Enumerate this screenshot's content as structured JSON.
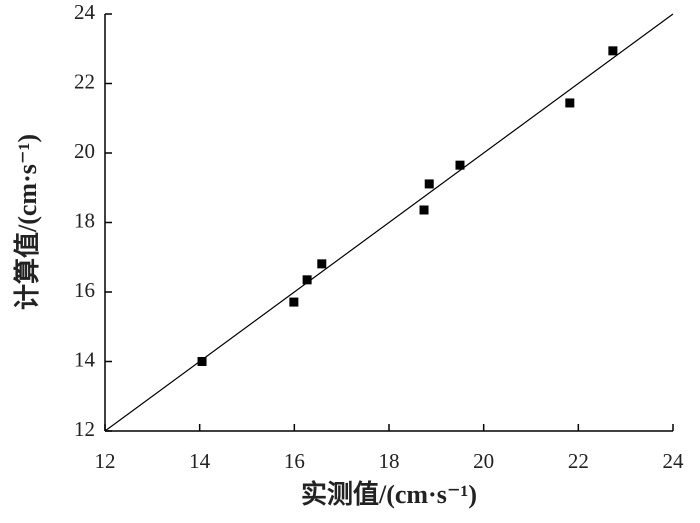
{
  "chart_data": {
    "type": "scatter",
    "x_label": "实测值/(cm·s⁻¹)",
    "y_label": "计算值/(cm·s⁻¹)",
    "x": [
      14.05,
      15.99,
      16.27,
      16.58,
      18.74,
      18.85,
      19.5,
      21.82,
      22.73
    ],
    "values": [
      14.0,
      15.71,
      16.35,
      16.81,
      18.36,
      19.11,
      19.65,
      21.44,
      22.94
    ],
    "color": "#000000",
    "xlim": [
      12,
      24
    ],
    "xticks": [
      12,
      14,
      16,
      18,
      20,
      22,
      24
    ],
    "ylim": [
      12,
      24
    ],
    "yticks": [
      12,
      14,
      16,
      18,
      20,
      22,
      24
    ],
    "grid": false
  }
}
